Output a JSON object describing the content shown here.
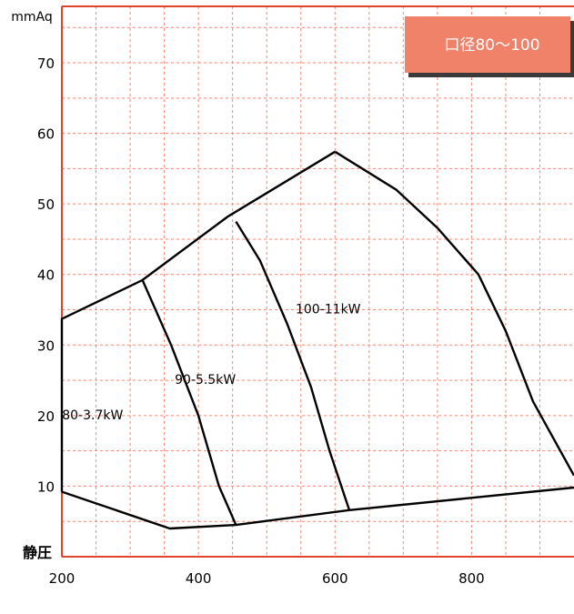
{
  "chart_data": {
    "type": "line",
    "title": "",
    "ylabel": "mmAq",
    "xlabel_corner": "静圧",
    "xlim": [
      200,
      950
    ],
    "ylim": [
      0,
      78
    ],
    "x_ticks": [
      200,
      400,
      600,
      800
    ],
    "y_ticks": [
      10,
      20,
      30,
      40,
      50,
      60,
      70
    ],
    "grid": true,
    "legend_box": {
      "label": "口径80～100",
      "placement": "top-right"
    },
    "colors": {
      "axis": "#e0452b",
      "grid": "#ef8a7a",
      "curve": "#000000",
      "legend_fill": "#f0826a",
      "legend_shadow": "#3a3a3a",
      "legend_text": "#ffffff"
    },
    "series": [
      {
        "points": [
          [
            200,
            9.2
          ],
          [
            200,
            33.7
          ],
          [
            318,
            39.2
          ],
          [
            443,
            48.2
          ],
          [
            600,
            57.4
          ]
        ]
      },
      {
        "points": [
          [
            200,
            9.2
          ],
          [
            358,
            4.0
          ],
          [
            455,
            4.5
          ],
          [
            621,
            6.6
          ],
          [
            950,
            9.8
          ]
        ]
      },
      {
        "points": [
          [
            318,
            39.2
          ],
          [
            360,
            30
          ],
          [
            400,
            20
          ],
          [
            430,
            10
          ],
          [
            455,
            4.5
          ]
        ]
      },
      {
        "points": [
          [
            455,
            47.5
          ],
          [
            490,
            42
          ],
          [
            530,
            33
          ],
          [
            565,
            24
          ],
          [
            592,
            15
          ],
          [
            621,
            6.6
          ]
        ]
      },
      {
        "points": [
          [
            600,
            57.4
          ],
          [
            690,
            52
          ],
          [
            750,
            46.6
          ],
          [
            810,
            40
          ],
          [
            850,
            32
          ],
          [
            890,
            22
          ],
          [
            950,
            11.5
          ]
        ]
      }
    ],
    "annotations": [
      {
        "text": "80-3.7kW",
        "x": 245,
        "y": 19.5
      },
      {
        "text": "90-5.5kW",
        "x": 410,
        "y": 24.5
      },
      {
        "text": "100-11kW",
        "x": 590,
        "y": 34.5
      }
    ]
  }
}
